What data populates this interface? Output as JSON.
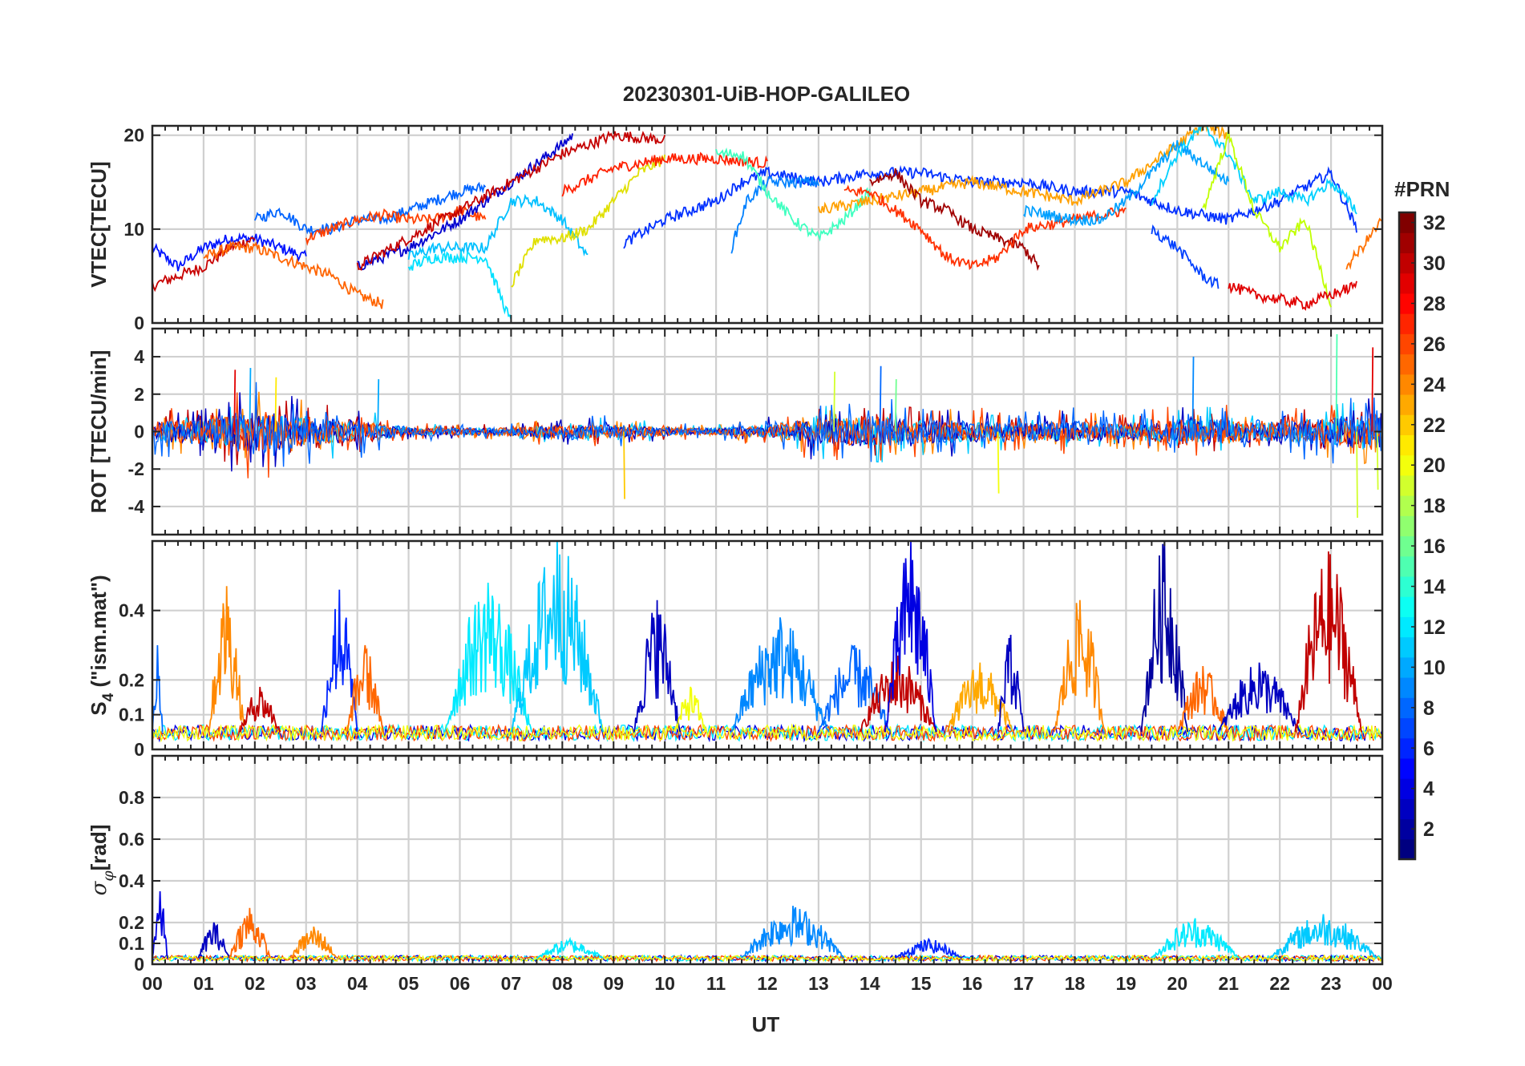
{
  "chart_data": {
    "type": "line",
    "title": "20230301-UiB-HOP-GALILEO",
    "xlabel": "UT",
    "x_tick_labels": [
      "00",
      "01",
      "02",
      "03",
      "04",
      "05",
      "06",
      "07",
      "08",
      "09",
      "10",
      "11",
      "12",
      "13",
      "14",
      "15",
      "16",
      "17",
      "18",
      "19",
      "20",
      "21",
      "22",
      "23",
      "00"
    ],
    "xlim_hours": [
      0,
      24
    ],
    "colorbar": {
      "label": "#PRN",
      "range": [
        1,
        32
      ],
      "tick_labels": [
        "2",
        "4",
        "6",
        "8",
        "10",
        "12",
        "14",
        "16",
        "18",
        "20",
        "22",
        "24",
        "26",
        "28",
        "30",
        "32"
      ],
      "colormap": "jet"
    },
    "panels": [
      {
        "id": "vtec",
        "ylabel": "VTEC[TECU]",
        "ylim": [
          0,
          21
        ],
        "y_ticks": [
          "0",
          "10",
          "20"
        ],
        "y_tick_values": [
          0,
          10,
          20
        ],
        "series": [
          {
            "prn": 3,
            "color": "#0014ff",
            "t": [
              0.0,
              0.5,
              1.0,
              1.5,
              2.0,
              2.5,
              3.0
            ],
            "v": [
              8,
              6,
              8,
              9,
              9,
              8,
              7
            ]
          },
          {
            "prn": 30,
            "color": "#c80000",
            "t": [
              0.0,
              0.5,
              1.0,
              1.5,
              2.0
            ],
            "v": [
              4,
              5,
              6,
              8,
              9
            ]
          },
          {
            "prn": 24,
            "color": "#ff6400",
            "t": [
              1.0,
              1.5,
              2.0,
              2.5,
              3.0,
              3.5,
              4.0,
              4.5
            ],
            "v": [
              7,
              8,
              8,
              7,
              6,
              5,
              3,
              2
            ]
          },
          {
            "prn": 8,
            "color": "#0064ff",
            "t": [
              2.0,
              2.5,
              3.0,
              3.5,
              4.0,
              4.5,
              5.0,
              5.5,
              6.0,
              6.5
            ],
            "v": [
              11,
              12,
              10,
              10,
              11,
              11,
              12,
              13,
              14,
              14.5
            ]
          },
          {
            "prn": 25,
            "color": "#ff4000",
            "t": [
              3.0,
              3.5,
              4.0,
              4.5,
              5.0,
              5.5,
              6.0,
              6.5
            ],
            "v": [
              9,
              10,
              11,
              11.5,
              11,
              11,
              12,
              11
            ]
          },
          {
            "prn": 2,
            "color": "#0000d0",
            "t": [
              4.0,
              5.0,
              6.0,
              7.0,
              7.5,
              8.0,
              8.2
            ],
            "v": [
              6,
              8,
              11,
              15,
              17,
              19,
              20
            ]
          },
          {
            "prn": 29,
            "color": "#c40000",
            "t": [
              4.0,
              5.0,
              6.0,
              7.0,
              8.0,
              9.0,
              10.0
            ],
            "v": [
              6,
              9,
              12,
              15,
              18,
              20,
              19.5
            ]
          },
          {
            "prn": 11,
            "color": "#00c0ff",
            "t": [
              5.0,
              5.5,
              6.0,
              6.5,
              7.0,
              7.5,
              8.0,
              8.5
            ],
            "v": [
              7,
              8,
              8,
              8,
              13,
              13,
              11,
              7
            ]
          },
          {
            "prn": 12,
            "color": "#00e0ff",
            "t": [
              5.0,
              5.5,
              6.0,
              6.5,
              7.0
            ],
            "v": [
              6,
              7,
              7,
              7,
              0
            ]
          },
          {
            "prn": 20,
            "color": "#e0e000",
            "t": [
              7.0,
              7.5,
              8.0,
              8.5,
              9.0,
              9.5,
              10.0
            ],
            "v": [
              4,
              9,
              9,
              10,
              13,
              16,
              17.5
            ]
          },
          {
            "prn": 27,
            "color": "#ff2000",
            "t": [
              8.0,
              9.0,
              10.0,
              11.0,
              12.0
            ],
            "v": [
              14,
              16.5,
              17.5,
              17.5,
              17
            ]
          },
          {
            "prn": 4,
            "color": "#0030ff",
            "t": [
              9.2,
              10.0,
              11.0,
              11.5,
              12.0,
              13.0,
              14.0,
              15.0,
              16.0,
              17.0,
              18.0,
              19.0,
              20.0,
              21.0,
              22.0,
              23.0,
              23.5
            ],
            "v": [
              8.5,
              11,
              13,
              15,
              16,
              15,
              16,
              16,
              15,
              15,
              14,
              14,
              12,
              11,
              13,
              16,
              10
            ]
          },
          {
            "prn": 9,
            "color": "#0080ff",
            "t": [
              11.3,
              11.6,
              12.0,
              12.5,
              13.0
            ],
            "v": [
              8,
              13,
              15,
              15,
              15
            ]
          },
          {
            "prn": 15,
            "color": "#40ffc0",
            "t": [
              11.0,
              11.5,
              12.0,
              12.5,
              13.0,
              13.5,
              14.0
            ],
            "v": [
              18,
              18,
              14,
              11,
              9,
              11,
              14
            ]
          },
          {
            "prn": 22,
            "color": "#ffa000",
            "t": [
              13.0,
              14.0,
              15.0,
              16.0,
              17.0,
              18.0,
              19.0,
              20.0,
              20.5,
              21.0
            ],
            "v": [
              12,
              13,
              14,
              15,
              14,
              13,
              15,
              19,
              21,
              20
            ]
          },
          {
            "prn": 31,
            "color": "#a00000",
            "t": [
              14.0,
              14.5,
              15.0,
              15.5,
              16.0,
              16.5,
              17.0,
              17.3
            ],
            "v": [
              15,
              16,
              13,
              12,
              10,
              9,
              8,
              6
            ]
          },
          {
            "prn": 26,
            "color": "#ff3000",
            "t": [
              13.5,
              14.0,
              15.0,
              15.5,
              16.0,
              16.5,
              17.0,
              18.0,
              19.0
            ],
            "v": [
              14,
              14,
              10,
              7,
              6,
              7,
              10,
              11,
              12
            ]
          },
          {
            "prn": 10,
            "color": "#00a0ff",
            "t": [
              17.0,
              18.0,
              18.5,
              19.0,
              19.5,
              20.0,
              20.5,
              21.0
            ],
            "v": [
              12,
              11,
              11,
              13,
              16,
              19,
              17,
              15
            ]
          },
          {
            "prn": 13,
            "color": "#00d0ff",
            "t": [
              19.5,
              20.0,
              20.5,
              21.0,
              21.5,
              22.0,
              22.5,
              23.0,
              23.5
            ],
            "v": [
              13,
              18,
              21,
              18,
              13,
              14,
              13,
              15,
              12
            ]
          },
          {
            "prn": 19,
            "color": "#c0ff00",
            "t": [
              20.5,
              21.0,
              21.5,
              22.0,
              22.5,
              23.0
            ],
            "v": [
              12,
              20,
              12,
              8,
              11,
              2
            ]
          },
          {
            "prn": 28,
            "color": "#e00000",
            "t": [
              21.0,
              21.5,
              22.0,
              22.5,
              23.0,
              23.5
            ],
            "v": [
              4,
              3,
              2.5,
              2,
              3,
              4
            ]
          },
          {
            "prn": 5,
            "color": "#0040ff",
            "t": [
              19.5,
              20.0,
              20.5,
              20.8
            ],
            "v": [
              10,
              8,
              5,
              4
            ]
          },
          {
            "prn": 24,
            "color": "#ff7000",
            "t": [
              23.3,
              23.6,
              24.0
            ],
            "v": [
              6,
              8,
              11
            ]
          }
        ]
      },
      {
        "id": "rot",
        "ylabel": "ROT [TECU/min]",
        "ylim": [
          -5.5,
          5.5
        ],
        "y_ticks": [
          "-4",
          "-2",
          "0",
          "2",
          "4"
        ],
        "y_tick_values": [
          -4,
          -2,
          0,
          2,
          4
        ],
        "noise_envelope": {
          "t": [
            0,
            1,
            2,
            3,
            4,
            5,
            6,
            7,
            8,
            9,
            10,
            11,
            12,
            13,
            14,
            15,
            16,
            17,
            18,
            19,
            20,
            21,
            22,
            23,
            24
          ],
          "amp": [
            1.2,
            1.6,
            2.6,
            1.8,
            1.4,
            0.5,
            0.4,
            0.5,
            0.9,
            0.8,
            0.5,
            0.4,
            0.8,
            1.6,
            1.8,
            1.4,
            1.3,
            1.0,
            1.2,
            1.0,
            1.4,
            1.4,
            1.2,
            1.6,
            2.4
          ]
        },
        "spikes": [
          {
            "t": 1.6,
            "v": 3.3
          },
          {
            "t": 1.9,
            "v": 3.4
          },
          {
            "t": 2.4,
            "v": 2.9
          },
          {
            "t": 4.4,
            "v": 2.8
          },
          {
            "t": 9.2,
            "v": -3.6
          },
          {
            "t": 13.3,
            "v": 3.2
          },
          {
            "t": 14.2,
            "v": 3.5
          },
          {
            "t": 14.5,
            "v": 2.8
          },
          {
            "t": 16.5,
            "v": -3.3
          },
          {
            "t": 20.3,
            "v": 4.0
          },
          {
            "t": 23.1,
            "v": 5.2
          },
          {
            "t": 23.5,
            "v": -4.6
          },
          {
            "t": 23.8,
            "v": 4.5
          },
          {
            "t": 23.9,
            "v": -3.1
          }
        ]
      },
      {
        "id": "s4",
        "ylabel": "S4 (\"ism.mat\")",
        "ylabel_main": "S",
        "ylabel_sub": "4",
        "ylabel_rest": " (\"ism.mat\")",
        "ylim": [
          0,
          0.6
        ],
        "y_ticks": [
          "0",
          "0.1",
          "0.2",
          "0.4"
        ],
        "y_tick_values": [
          0,
          0.1,
          0.2,
          0.4
        ],
        "base": 0.05,
        "bursts": [
          {
            "t0": 0.0,
            "t1": 0.2,
            "peak": 0.3,
            "prn": 8
          },
          {
            "t0": 1.1,
            "t1": 1.8,
            "peak": 0.47,
            "prn": 24
          },
          {
            "t0": 1.7,
            "t1": 2.5,
            "peak": 0.18,
            "prn": 30
          },
          {
            "t0": 3.3,
            "t1": 4.0,
            "peak": 0.46,
            "prn": 6
          },
          {
            "t0": 3.8,
            "t1": 4.5,
            "peak": 0.3,
            "prn": 25
          },
          {
            "t0": 5.7,
            "t1": 7.4,
            "peak": 0.48,
            "prn": 12
          },
          {
            "t0": 7.0,
            "t1": 8.8,
            "peak": 0.6,
            "prn": 11
          },
          {
            "t0": 9.4,
            "t1": 10.3,
            "peak": 0.43,
            "prn": 3
          },
          {
            "t0": 10.2,
            "t1": 10.8,
            "peak": 0.18,
            "prn": 20
          },
          {
            "t0": 11.3,
            "t1": 13.2,
            "peak": 0.38,
            "prn": 9
          },
          {
            "t0": 13.0,
            "t1": 14.4,
            "peak": 0.3,
            "prn": 8
          },
          {
            "t0": 13.8,
            "t1": 15.3,
            "peak": 0.27,
            "prn": 30
          },
          {
            "t0": 14.3,
            "t1": 15.3,
            "peak": 0.6,
            "prn": 4
          },
          {
            "t0": 15.5,
            "t1": 16.8,
            "peak": 0.25,
            "prn": 23
          },
          {
            "t0": 16.5,
            "t1": 17.0,
            "peak": 0.33,
            "prn": 3
          },
          {
            "t0": 17.6,
            "t1": 18.6,
            "peak": 0.43,
            "prn": 24
          },
          {
            "t0": 19.3,
            "t1": 20.2,
            "peak": 0.6,
            "prn": 2
          },
          {
            "t0": 20.0,
            "t1": 21.0,
            "peak": 0.24,
            "prn": 25
          },
          {
            "t0": 20.8,
            "t1": 22.4,
            "peak": 0.25,
            "prn": 3
          },
          {
            "t0": 22.3,
            "t1": 23.6,
            "peak": 0.57,
            "prn": 30
          }
        ]
      },
      {
        "id": "sigma_phi",
        "ylabel": "σφ[rad]",
        "ylabel_main": "σ",
        "ylabel_sub": "φ",
        "ylabel_rest": "[rad]",
        "ylim": [
          0,
          1.0
        ],
        "y_ticks": [
          "0",
          "0.1",
          "0.2",
          "0.4",
          "0.6",
          "0.8"
        ],
        "y_tick_values": [
          0,
          0.1,
          0.2,
          0.4,
          0.6,
          0.8
        ],
        "base": 0.03,
        "bursts": [
          {
            "t0": 0.0,
            "t1": 0.3,
            "peak": 0.35,
            "prn": 4
          },
          {
            "t0": 0.9,
            "t1": 1.5,
            "peak": 0.2,
            "prn": 3
          },
          {
            "t0": 1.5,
            "t1": 2.3,
            "peak": 0.27,
            "prn": 25
          },
          {
            "t0": 2.7,
            "t1": 3.6,
            "peak": 0.18,
            "prn": 24
          },
          {
            "t0": 7.5,
            "t1": 8.8,
            "peak": 0.12,
            "prn": 12
          },
          {
            "t0": 11.5,
            "t1": 13.5,
            "peak": 0.28,
            "prn": 9
          },
          {
            "t0": 14.5,
            "t1": 15.8,
            "peak": 0.12,
            "prn": 6
          },
          {
            "t0": 19.5,
            "t1": 21.2,
            "peak": 0.22,
            "prn": 12
          },
          {
            "t0": 21.8,
            "t1": 23.9,
            "peak": 0.24,
            "prn": 11
          }
        ]
      }
    ]
  }
}
